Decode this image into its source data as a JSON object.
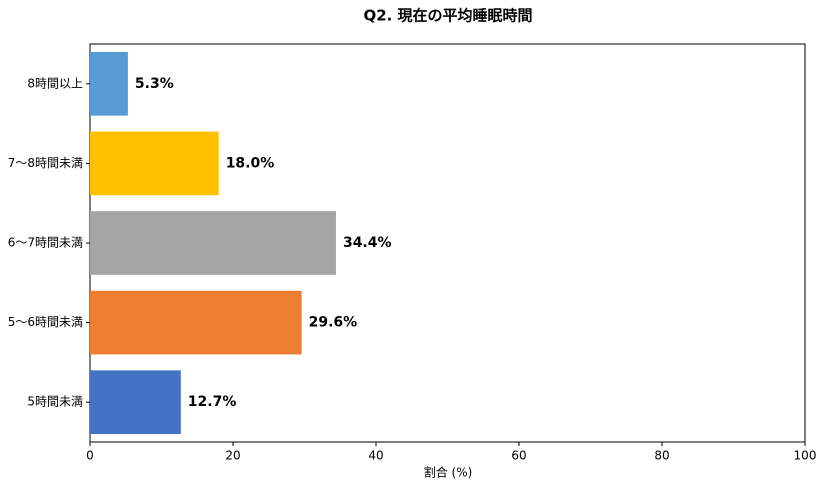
{
  "chart_data": {
    "type": "hbar",
    "title": "Q2. 現在の平均睡眠時間",
    "categories": [
      "8時間以上",
      "7～8時間未満",
      "6～7時間未満",
      "5～6時間未満",
      "5時間未満"
    ],
    "values": [
      5.3,
      18.0,
      34.4,
      29.6,
      12.7
    ],
    "value_labels": [
      "5.3%",
      "18.0%",
      "34.4%",
      "29.6%",
      "12.7%"
    ],
    "colors": [
      "#5b9bd5",
      "#ffc000",
      "#a5a5a5",
      "#ed7d31",
      "#4472c4"
    ],
    "xlabel": "割合 (%)",
    "xlim": [
      0,
      100
    ],
    "xticks": [
      0,
      20,
      40,
      60,
      80,
      100
    ]
  }
}
